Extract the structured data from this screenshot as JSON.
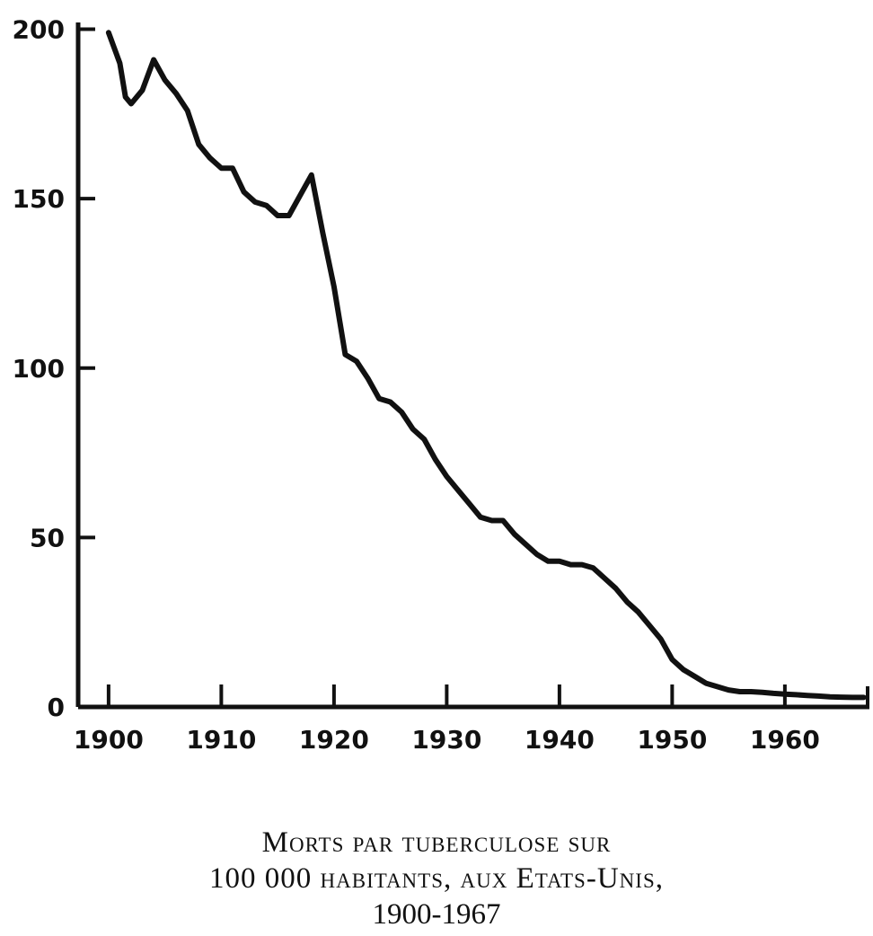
{
  "chart_data": {
    "type": "line",
    "title": "",
    "xlabel": "",
    "ylabel": "",
    "xlim": [
      1897.3,
      1967.5
    ],
    "ylim": [
      0,
      202
    ],
    "x_ticks": [
      1900,
      1910,
      1920,
      1930,
      1940,
      1950,
      1960
    ],
    "y_ticks": [
      0,
      50,
      100,
      150,
      200
    ],
    "x_tick_labels": [
      "1900",
      "1910",
      "1920",
      "1930",
      "1940",
      "1950",
      "1960"
    ],
    "y_tick_labels": [
      "0",
      "50",
      "100",
      "150",
      "200"
    ],
    "grid": false,
    "legend": "none",
    "line_color": "#111111",
    "series": [
      {
        "x": [
          1900,
          1901,
          1901.5,
          1902,
          1903,
          1904,
          1905,
          1906,
          1907,
          1908,
          1909,
          1910,
          1911,
          1912,
          1913,
          1914,
          1915,
          1916,
          1917,
          1918,
          1919,
          1920,
          1921,
          1922,
          1923,
          1924,
          1925,
          1926,
          1927,
          1928,
          1929,
          1930,
          1931,
          1932,
          1933,
          1934,
          1935,
          1936,
          1937,
          1938,
          1939,
          1940,
          1941,
          1942,
          1943,
          1944,
          1945,
          1946,
          1947,
          1948,
          1949,
          1950,
          1951,
          1952,
          1953,
          1954,
          1955,
          1956,
          1957,
          1958,
          1959,
          1960,
          1961,
          1962,
          1963,
          1964,
          1965,
          1966,
          1967
        ],
        "y": [
          199,
          190,
          180,
          178,
          182,
          191,
          185,
          181,
          176,
          166,
          162,
          159,
          159,
          152,
          149,
          148,
          145,
          145,
          151,
          157,
          140,
          124,
          104,
          102,
          97,
          91,
          90,
          87,
          82,
          79,
          73,
          68,
          64,
          60,
          56,
          55,
          55,
          51,
          48,
          45,
          43,
          43,
          42,
          42,
          41,
          38,
          35,
          31,
          28,
          24,
          20,
          14,
          11,
          9,
          7,
          6,
          5,
          4.5,
          4.5,
          4.3,
          4,
          3.8,
          3.6,
          3.4,
          3.2,
          3,
          2.9,
          2.8,
          2.8
        ]
      }
    ]
  },
  "caption": {
    "line1": "Morts par tuberculose sur",
    "line2": "100 000 habitants, aux Etats-Unis,",
    "line3": "1900-1967"
  }
}
